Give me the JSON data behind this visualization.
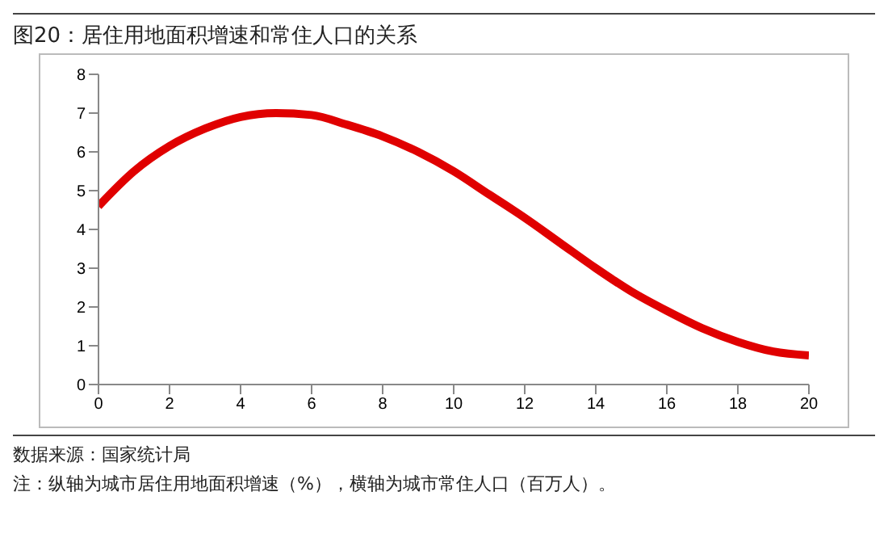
{
  "chart_data": {
    "type": "line",
    "title": "图20：居住用地面积增速和常住人口的关系",
    "x": [
      0,
      1,
      2,
      3,
      4,
      5,
      6,
      7,
      8,
      9,
      10,
      11,
      12,
      13,
      14,
      15,
      16,
      17,
      18,
      19,
      20
    ],
    "series": [
      {
        "color": "#e00000",
        "values": [
          4.6,
          5.5,
          6.15,
          6.6,
          6.9,
          7.0,
          6.95,
          6.7,
          6.4,
          6.0,
          5.5,
          4.9,
          4.3,
          3.65,
          3.0,
          2.4,
          1.9,
          1.45,
          1.1,
          0.85,
          0.75
        ]
      }
    ],
    "xlim": [
      0,
      20
    ],
    "xticks": [
      0,
      2,
      4,
      6,
      8,
      10,
      12,
      14,
      16,
      18,
      20
    ],
    "ylim": [
      0,
      8
    ],
    "yticks": [
      0,
      1,
      2,
      3,
      4,
      5,
      6,
      7,
      8
    ],
    "grid": false,
    "legend": false,
    "marker": "none",
    "line_style": "solid",
    "annotations": [
      "数据来源：国家统计局",
      "注：纵轴为城市居住用地面积增速（%），横轴为城市常住人口（百万人）。"
    ]
  }
}
